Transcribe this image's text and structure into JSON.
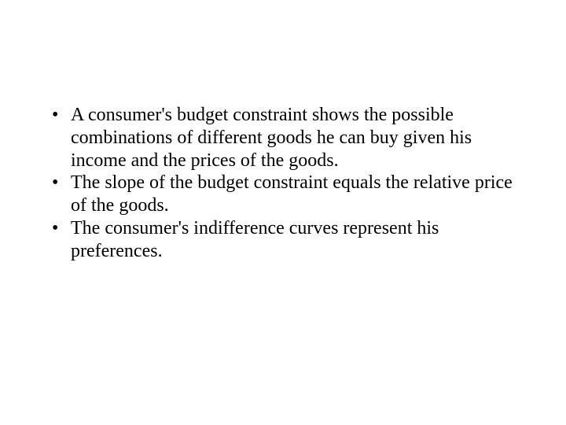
{
  "slide": {
    "background_color": "#ffffff",
    "text_color": "#000000",
    "font_family": "Times New Roman",
    "font_size_pt": 24,
    "bullets": [
      "A consumer's budget constraint shows the possible combinations of different goods he can buy given his income and the prices of the goods.",
      "The slope of the budget constraint equals the relative price of the goods.",
      "The consumer's indifference curves represent his preferences."
    ]
  }
}
